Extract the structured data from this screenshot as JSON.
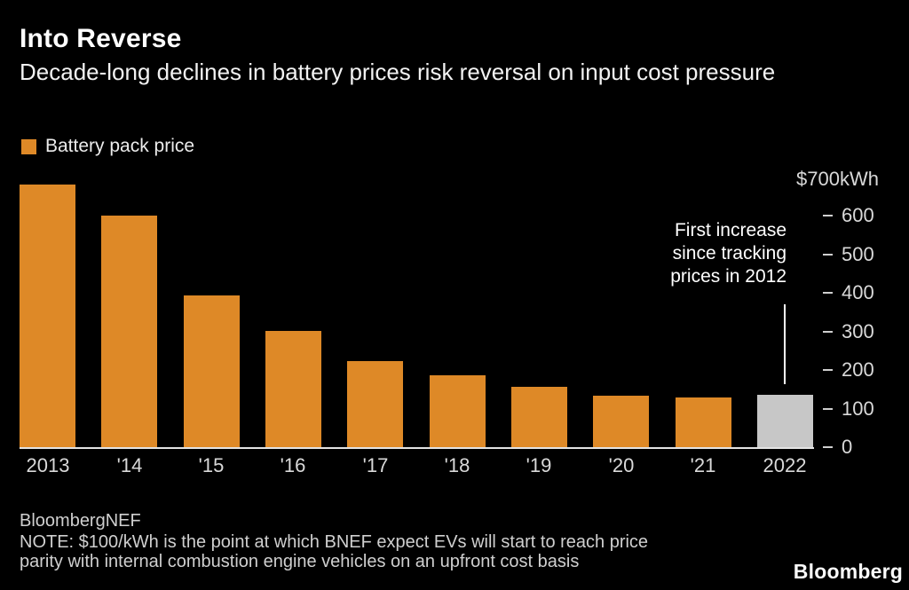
{
  "header": {
    "title": "Into Reverse",
    "subtitle": "Decade-long declines in battery prices risk reversal on input cost pressure"
  },
  "legend": {
    "label": "Battery pack price"
  },
  "chart_data": {
    "type": "bar",
    "title": "Into Reverse",
    "subtitle": "Decade-long declines in battery prices risk reversal on input cost pressure",
    "unit_label": "$700kWh",
    "categories": [
      "2013",
      "'14",
      "'15",
      "'16",
      "'17",
      "'18",
      "'19",
      "'20",
      "'21",
      "2022"
    ],
    "values": [
      682,
      601,
      394,
      302,
      223,
      187,
      157,
      134,
      129,
      136
    ],
    "ylim": [
      0,
      700
    ],
    "yticks": [
      0,
      100,
      200,
      300,
      400,
      500,
      600
    ],
    "grid": false,
    "legend_entries": [
      "Battery pack price"
    ],
    "bar_color": "#de8927",
    "highlight_bar_color": "#c7c7c7",
    "highlight_category": "2022",
    "annotation": "First increase since tracking prices in 2012"
  },
  "annotation": {
    "lines": [
      "First increase",
      "since tracking",
      "prices in 2012"
    ]
  },
  "footer": {
    "source": "BloombergNEF",
    "note_lines": [
      "NOTE: $100/kWh is the point at which BNEF expect EVs will start to reach price",
      "parity with internal combustion engine vehicles on an upfront cost basis"
    ],
    "logo": "Bloomberg"
  },
  "colors": {
    "background": "#000000",
    "bar_orange": "#de8927",
    "bar_gray": "#c7c7c7",
    "axis_text": "#d9d9d9",
    "footer_text": "#cfcfcf",
    "annotation_text": "#ffffff"
  }
}
